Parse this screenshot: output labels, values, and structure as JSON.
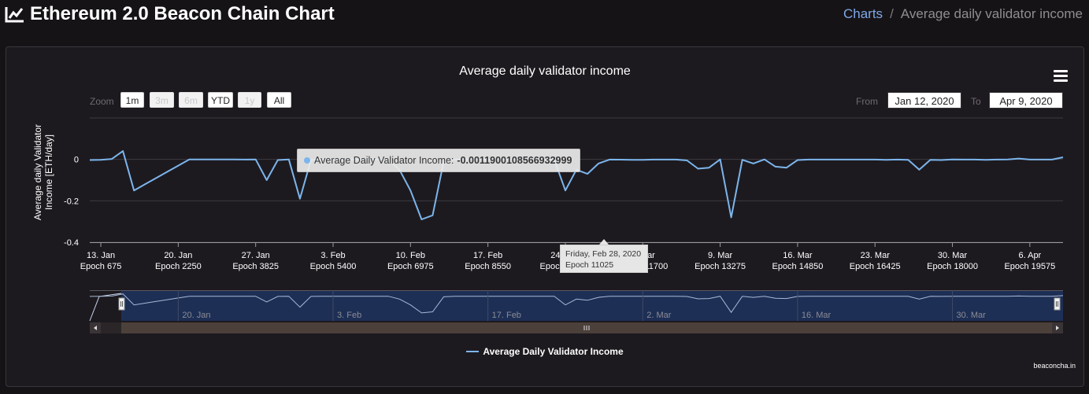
{
  "header": {
    "title": "Ethereum 2.0 Beacon Chain Chart",
    "breadcrumb": {
      "parent": "Charts",
      "current": "Average daily validator income"
    }
  },
  "range_selector": {
    "zoom_label": "Zoom",
    "buttons": [
      {
        "label": "1m",
        "enabled": true
      },
      {
        "label": "3m",
        "enabled": false
      },
      {
        "label": "6m",
        "enabled": false
      },
      {
        "label": "YTD",
        "enabled": true
      },
      {
        "label": "1y",
        "enabled": false
      },
      {
        "label": "All",
        "enabled": true
      }
    ],
    "from_label": "From",
    "from_value": "Jan 12, 2020",
    "to_label": "To",
    "to_value": "Apr 9, 2020"
  },
  "tooltip": {
    "series": "Average Daily Validator Income:",
    "value": "-0.0011900108566932999",
    "date": "Friday, Feb 28, 2020",
    "epoch": "Epoch 11025"
  },
  "legend": {
    "label": "Average Daily Validator Income"
  },
  "credits": "beaconcha.in",
  "chart_data": {
    "type": "line",
    "title": "Average daily validator income",
    "ylabel": "Average daily Validator Income [ETH/day]",
    "ylim": [
      -0.4,
      0.2
    ],
    "y_ticks": [
      "0",
      "-0.2",
      "-0.4"
    ],
    "x_ticks": [
      {
        "date": "13. Jan",
        "epoch": "Epoch 675"
      },
      {
        "date": "20. Jan",
        "epoch": "Epoch 2250"
      },
      {
        "date": "27. Jan",
        "epoch": "Epoch 3825"
      },
      {
        "date": "3. Feb",
        "epoch": "Epoch 5400"
      },
      {
        "date": "10. Feb",
        "epoch": "Epoch 6975"
      },
      {
        "date": "17. Feb",
        "epoch": "Epoch 8550"
      },
      {
        "date": "24. Feb",
        "epoch": "Epoch 10125"
      },
      {
        "date": "2. Mar",
        "epoch": "Epoch 11700"
      },
      {
        "date": "9. Mar",
        "epoch": "Epoch 13275"
      },
      {
        "date": "16. Mar",
        "epoch": "Epoch 14850"
      },
      {
        "date": "23. Mar",
        "epoch": "Epoch 16425"
      },
      {
        "date": "30. Mar",
        "epoch": "Epoch 18000"
      },
      {
        "date": "6. Apr",
        "epoch": "Epoch 19575"
      }
    ],
    "navigator_ticks": [
      "20. Jan",
      "3. Feb",
      "17. Feb",
      "2. Mar",
      "16. Mar",
      "30. Mar"
    ],
    "series": [
      {
        "name": "Average Daily Validator Income",
        "color": "#7cb5ec",
        "x_start": "Jan 12, 2020",
        "values": [
          -0.003,
          -0.002,
          0.002,
          0.04,
          -0.15,
          -0.12,
          -0.09,
          -0.06,
          -0.03,
          0.0,
          0.0,
          0.0,
          0.0,
          0.0,
          -0.001,
          0.0,
          -0.1,
          -0.003,
          0.0,
          -0.19,
          -0.003,
          0.0,
          0.0,
          0.0,
          0.0,
          0.0,
          0.0,
          0.0,
          -0.05,
          -0.15,
          -0.29,
          -0.27,
          -0.01,
          0.0,
          0.0,
          0.0,
          0.0,
          0.0,
          0.0,
          0.0,
          0.0,
          0.0,
          -0.001,
          -0.15,
          -0.05,
          -0.07,
          -0.02,
          -0.001,
          -0.0012,
          -0.002,
          -0.002,
          -0.001,
          -0.001,
          -0.001,
          -0.005,
          -0.045,
          -0.04,
          0.0,
          -0.28,
          -0.002,
          -0.02,
          0.0,
          -0.035,
          -0.04,
          -0.003,
          -0.001,
          -0.001,
          -0.001,
          -0.001,
          -0.001,
          -0.001,
          -0.001,
          -0.002,
          -0.001,
          -0.002,
          -0.05,
          -0.002,
          -0.003,
          0.0,
          -0.001,
          -0.001,
          -0.002,
          -0.001,
          0.0,
          0.004,
          -0.001,
          -0.001,
          -0.001,
          0.01
        ]
      }
    ],
    "grid": true,
    "legend_position": "bottom-center"
  }
}
